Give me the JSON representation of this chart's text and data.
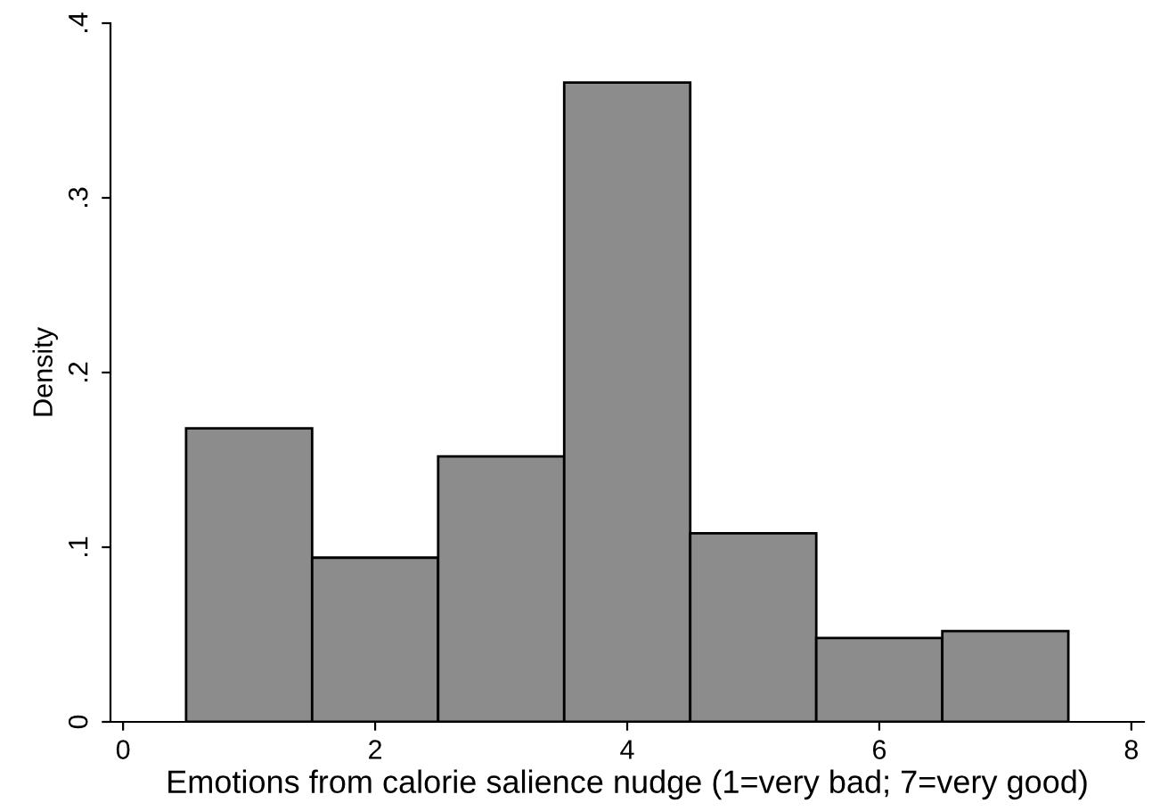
{
  "chart_data": {
    "type": "histogram",
    "xlabel": "Emotions from calorie salience nudge (1=very bad; 7=very good)",
    "ylabel": "Density",
    "bins": [
      0.5,
      1.5,
      2.5,
      3.5,
      4.5,
      5.5,
      6.5,
      7.5
    ],
    "values": [
      0.168,
      0.094,
      0.152,
      0.366,
      0.108,
      0.048,
      0.052
    ],
    "color": "#8c8c8c",
    "xlim": [
      -0.1,
      8.1
    ],
    "xticks": [
      0,
      2,
      4,
      6,
      8
    ],
    "ylim": [
      0,
      0.4
    ],
    "yticks": [
      0,
      {
        "value": 0.1,
        "label": ".1"
      },
      {
        "value": 0.2,
        "label": ".2"
      },
      {
        "value": 0.3,
        "label": ".3"
      },
      {
        "value": 0.4,
        "label": ".4"
      }
    ],
    "grid": false
  }
}
